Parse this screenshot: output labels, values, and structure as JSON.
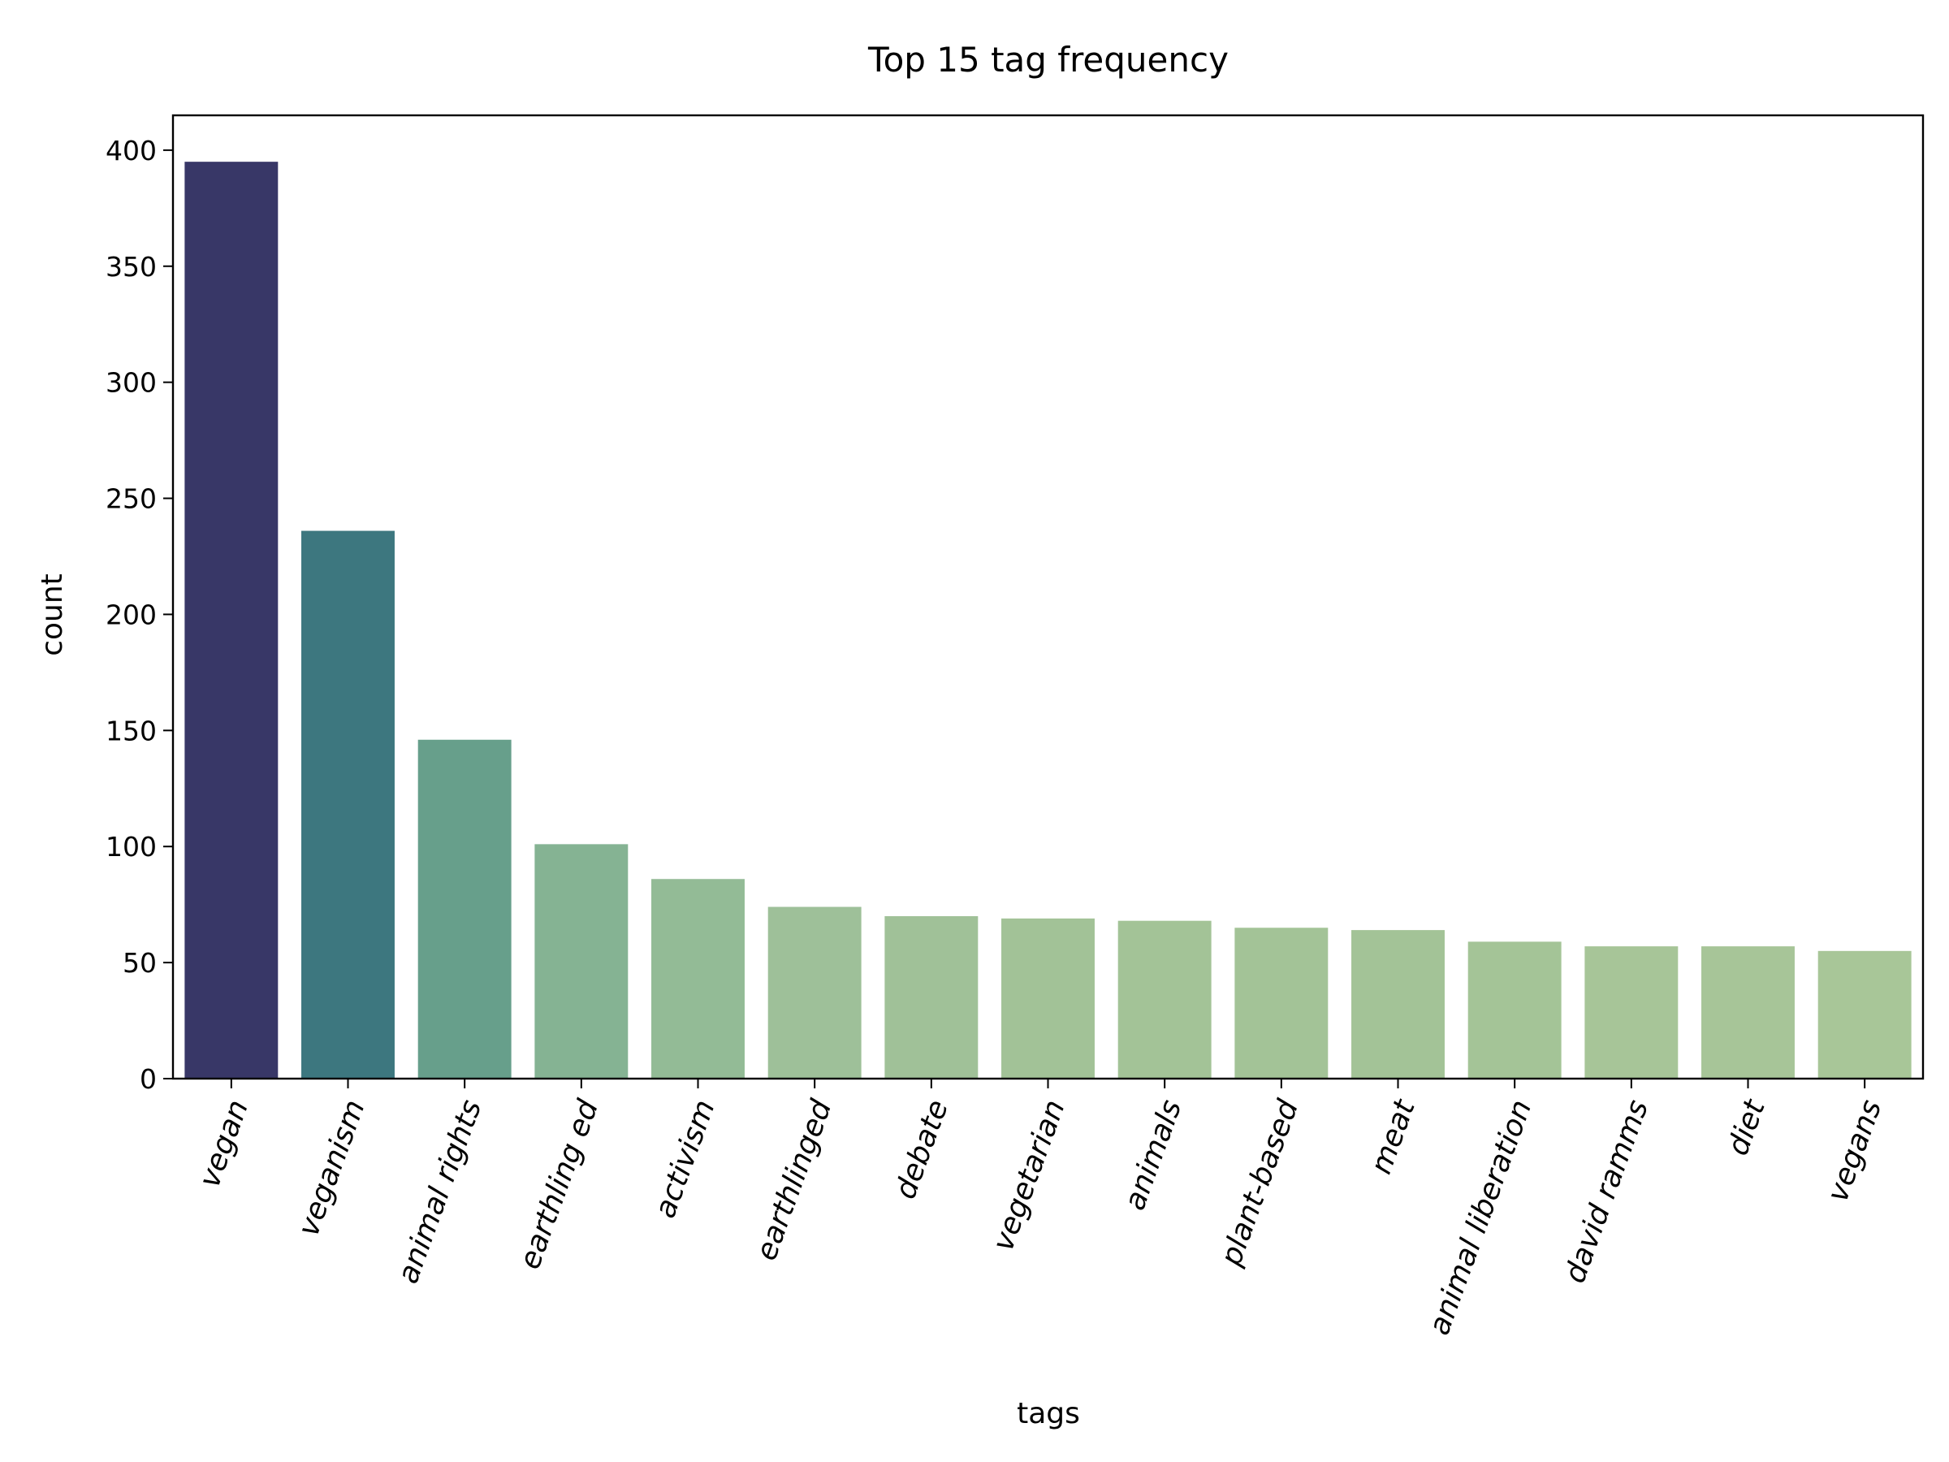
{
  "chart_data": {
    "type": "bar",
    "title": "Top 15 tag frequency",
    "xlabel": "tags",
    "ylabel": "count",
    "categories": [
      "vegan",
      "veganism",
      "animal rights",
      "earthling ed",
      "activism",
      "earthlinged",
      "debate",
      "vegetarian",
      "animals",
      "plant-based",
      "meat",
      "animal liberation",
      "david ramms",
      "diet",
      "vegans"
    ],
    "values": [
      395,
      236,
      146,
      101,
      86,
      74,
      70,
      69,
      68,
      65,
      64,
      59,
      57,
      57,
      55
    ],
    "colors": [
      "#383767",
      "#3d777f",
      "#679f8b",
      "#85b393",
      "#93bb96",
      "#9ec099",
      "#a0c198",
      "#a2c297",
      "#a3c397",
      "#a3c397",
      "#a3c397",
      "#a4c497",
      "#a7c598",
      "#a7c598",
      "#a8c698"
    ],
    "ylim": [
      0,
      415
    ],
    "yticks": [
      0,
      50,
      100,
      150,
      200,
      250,
      300,
      350,
      400
    ],
    "xtick_rotation": -70,
    "grid": false,
    "legend": "none"
  }
}
